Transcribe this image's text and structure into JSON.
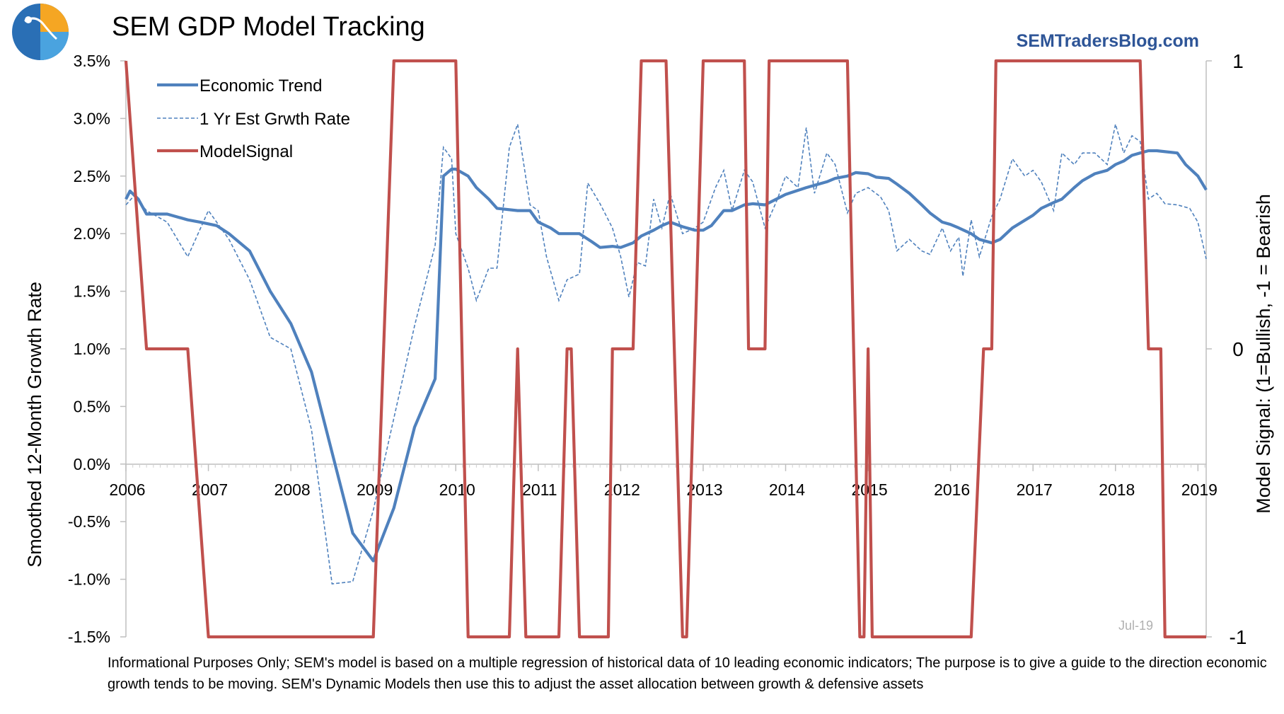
{
  "header": {
    "title": "SEM GDP Model Tracking",
    "brand": "SEMTradersBlog.com",
    "logo_name": "sem-globe-logo",
    "date_stamp": "Jul-19"
  },
  "footer": {
    "note": "Informational Purposes Only; SEM's model is based on a multiple regression of historical data of 10 leading economic indicators; The purpose is to give a guide to the direction economic growth tends to be moving. SEM's Dynamic Models then use this to adjust the asset allocation between growth & defensive assets"
  },
  "colors": {
    "trend": "#4f81bd",
    "estimate": "#4f81bd",
    "signal": "#c0504d",
    "brand": "#2e5597"
  },
  "chart_data": {
    "type": "line",
    "title": "SEM GDP Model Tracking",
    "ylabel": "Smoothed 12-Month Growth Rate",
    "y2label": "Model Signal: (1=Bullish, -1 = Bearish",
    "ylim": [
      -1.5,
      3.5
    ],
    "y2lim": [
      -1,
      1
    ],
    "xlim": [
      2006,
      2019.1
    ],
    "yticks": [
      "3.5%",
      "3.0%",
      "2.5%",
      "2.0%",
      "1.5%",
      "1.0%",
      "0.5%",
      "0.0%",
      "-0.5%",
      "-1.0%",
      "-1.5%"
    ],
    "ytick_values": [
      3.5,
      3.0,
      2.5,
      2.0,
      1.5,
      1.0,
      0.5,
      0.0,
      -0.5,
      -1.0,
      -1.5
    ],
    "y2ticks": [
      "1",
      "0",
      "-1"
    ],
    "y2tick_values": [
      1,
      0,
      -1
    ],
    "xticks": [
      "2006",
      "2007",
      "2008",
      "2009",
      "2010",
      "2011",
      "2012",
      "2013",
      "2014",
      "2015",
      "2016",
      "2017",
      "2018",
      "2019"
    ],
    "xtick_values": [
      2006,
      2007,
      2008,
      2009,
      2010,
      2011,
      2012,
      2013,
      2014,
      2015,
      2016,
      2017,
      2018,
      2019
    ],
    "legend": [
      "Economic Trend",
      "1 Yr Est Grwth Rate",
      "ModelSignal"
    ],
    "legend_position": "top-left",
    "series": [
      {
        "name": "Economic Trend",
        "axis": "left",
        "style": "solid",
        "x": [
          2006.0,
          2006.05,
          2006.15,
          2006.25,
          2006.5,
          2006.75,
          2006.9,
          2007.1,
          2007.25,
          2007.5,
          2007.75,
          2008.0,
          2008.25,
          2008.5,
          2008.75,
          2009.0,
          2009.25,
          2009.5,
          2009.75,
          2009.85,
          2009.95,
          2010.0,
          2010.15,
          2010.25,
          2010.4,
          2010.5,
          2010.75,
          2010.9,
          2011.0,
          2011.15,
          2011.25,
          2011.35,
          2011.5,
          2011.65,
          2011.75,
          2011.9,
          2012.0,
          2012.15,
          2012.25,
          2012.4,
          2012.5,
          2012.6,
          2012.75,
          2012.9,
          2013.0,
          2013.1,
          2013.25,
          2013.35,
          2013.5,
          2013.6,
          2013.75,
          2014.0,
          2014.25,
          2014.5,
          2014.6,
          2014.75,
          2014.85,
          2015.0,
          2015.1,
          2015.25,
          2015.35,
          2015.5,
          2015.65,
          2015.75,
          2015.9,
          2016.0,
          2016.1,
          2016.25,
          2016.35,
          2016.5,
          2016.6,
          2016.75,
          2017.0,
          2017.1,
          2017.25,
          2017.35,
          2017.5,
          2017.6,
          2017.75,
          2017.9,
          2018.0,
          2018.1,
          2018.2,
          2018.3,
          2018.4,
          2018.5,
          2018.75,
          2018.85,
          2019.0,
          2019.1
        ],
        "values": [
          2.3,
          2.37,
          2.3,
          2.17,
          2.17,
          2.12,
          2.1,
          2.07,
          2.0,
          1.85,
          1.5,
          1.22,
          0.8,
          0.1,
          -0.6,
          -0.84,
          -0.38,
          0.32,
          0.74,
          2.5,
          2.56,
          2.56,
          2.5,
          2.4,
          2.3,
          2.22,
          2.2,
          2.2,
          2.1,
          2.05,
          2.0,
          2.0,
          2.0,
          1.93,
          1.88,
          1.89,
          1.88,
          1.92,
          1.98,
          2.03,
          2.07,
          2.1,
          2.06,
          2.03,
          2.03,
          2.07,
          2.2,
          2.2,
          2.25,
          2.26,
          2.25,
          2.34,
          2.4,
          2.45,
          2.48,
          2.5,
          2.53,
          2.52,
          2.49,
          2.48,
          2.43,
          2.35,
          2.25,
          2.18,
          2.1,
          2.08,
          2.05,
          2.0,
          1.95,
          1.92,
          1.95,
          2.05,
          2.16,
          2.22,
          2.27,
          2.3,
          2.4,
          2.46,
          2.52,
          2.55,
          2.6,
          2.63,
          2.68,
          2.7,
          2.72,
          2.72,
          2.7,
          2.6,
          2.5,
          2.38
        ]
      },
      {
        "name": "1 Yr Est Grwth Rate",
        "axis": "left",
        "style": "dashed",
        "x": [
          2006.0,
          2006.1,
          2006.25,
          2006.5,
          2006.75,
          2007.0,
          2007.25,
          2007.5,
          2007.75,
          2008.0,
          2008.25,
          2008.5,
          2008.75,
          2009.0,
          2009.25,
          2009.5,
          2009.75,
          2009.85,
          2009.95,
          2010.0,
          2010.15,
          2010.25,
          2010.4,
          2010.5,
          2010.65,
          2010.75,
          2010.9,
          2011.0,
          2011.1,
          2011.25,
          2011.35,
          2011.5,
          2011.6,
          2011.75,
          2011.9,
          2012.0,
          2012.1,
          2012.2,
          2012.3,
          2012.4,
          2012.5,
          2012.6,
          2012.75,
          2012.9,
          2013.0,
          2013.15,
          2013.25,
          2013.35,
          2013.5,
          2013.6,
          2013.75,
          2013.9,
          2014.0,
          2014.15,
          2014.25,
          2014.35,
          2014.5,
          2014.6,
          2014.75,
          2014.85,
          2015.0,
          2015.15,
          2015.25,
          2015.35,
          2015.5,
          2015.65,
          2015.75,
          2015.9,
          2016.0,
          2016.1,
          2016.15,
          2016.25,
          2016.35,
          2016.5,
          2016.6,
          2016.75,
          2016.9,
          2017.0,
          2017.1,
          2017.25,
          2017.35,
          2017.5,
          2017.6,
          2017.75,
          2017.9,
          2018.0,
          2018.1,
          2018.2,
          2018.3,
          2018.4,
          2018.5,
          2018.6,
          2018.75,
          2018.9,
          2019.0,
          2019.1
        ],
        "values": [
          2.25,
          2.33,
          2.2,
          2.1,
          1.8,
          2.2,
          1.95,
          1.6,
          1.1,
          1.0,
          0.3,
          -1.04,
          -1.02,
          -0.4,
          0.4,
          1.2,
          1.9,
          2.75,
          2.65,
          2.0,
          1.7,
          1.42,
          1.7,
          1.7,
          2.75,
          2.95,
          2.25,
          2.2,
          1.8,
          1.42,
          1.6,
          1.65,
          2.44,
          2.26,
          2.05,
          1.8,
          1.45,
          1.75,
          1.72,
          2.3,
          2.05,
          2.35,
          2.0,
          2.05,
          2.1,
          2.4,
          2.55,
          2.2,
          2.55,
          2.45,
          2.05,
          2.3,
          2.5,
          2.4,
          2.92,
          2.35,
          2.7,
          2.6,
          2.18,
          2.35,
          2.4,
          2.32,
          2.2,
          1.85,
          1.95,
          1.85,
          1.82,
          2.05,
          1.85,
          1.97,
          1.63,
          2.12,
          1.8,
          2.15,
          2.3,
          2.65,
          2.5,
          2.55,
          2.45,
          2.2,
          2.7,
          2.6,
          2.7,
          2.7,
          2.6,
          2.95,
          2.7,
          2.85,
          2.8,
          2.3,
          2.35,
          2.26,
          2.25,
          2.22,
          2.1,
          1.78
        ]
      },
      {
        "name": "ModelSignal",
        "axis": "right",
        "style": "solid",
        "x": [
          2006.0,
          2006.25,
          2006.75,
          2007.0,
          2008.0,
          2009.0,
          2009.25,
          2010.0,
          2010.15,
          2010.65,
          2010.75,
          2010.85,
          2011.25,
          2011.35,
          2011.4,
          2011.5,
          2011.85,
          2011.9,
          2012.15,
          2012.25,
          2012.55,
          2012.75,
          2012.8,
          2013.0,
          2013.5,
          2013.55,
          2013.75,
          2013.8,
          2014.0,
          2014.75,
          2014.9,
          2014.95,
          2015.0,
          2015.05,
          2015.15,
          2015.2,
          2016.25,
          2016.4,
          2016.5,
          2016.55,
          2017.0,
          2018.3,
          2018.4,
          2018.55,
          2018.6,
          2018.75,
          2019.1
        ],
        "values": [
          1,
          0,
          0,
          -1,
          -1,
          -1,
          1,
          1,
          -1,
          -1,
          0,
          -1,
          -1,
          0,
          0,
          -1,
          -1,
          0,
          0,
          1,
          1,
          -1,
          -1,
          1,
          1,
          0,
          0,
          1,
          1,
          1,
          -1,
          -1,
          0,
          -1,
          -1,
          -1,
          -1,
          0,
          0,
          1,
          1,
          1,
          0,
          0,
          -1,
          -1,
          -1
        ]
      }
    ]
  }
}
